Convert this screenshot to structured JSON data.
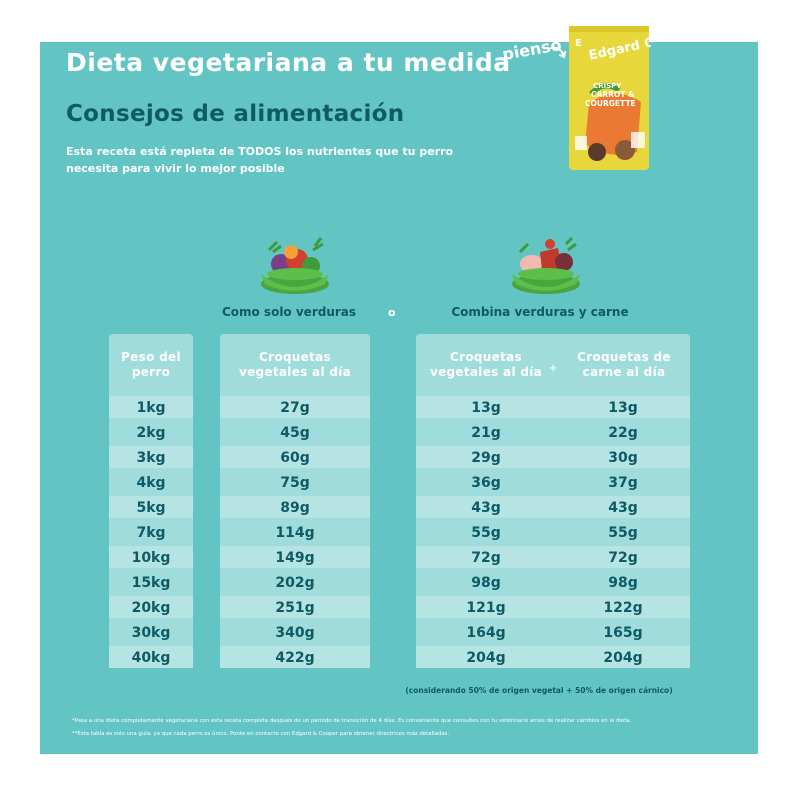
{
  "header": {
    "title": "Dieta vegetariana a tu medida",
    "subtitle": "Consejos de alimentación",
    "intro": "Esta receta está repleta de TODOS los nutrientes que tu perro necesita para vivir lo mejor posible"
  },
  "product": {
    "label": "pienso",
    "brand": "Edgard Cooper",
    "line1": "CRISPY",
    "line2": "CARROT &",
    "line3": "COURGETTE",
    "bag_color": "#e8d73a",
    "accent_color": "#ea7a33"
  },
  "columns": {
    "veg_only_label": "Como solo verduras",
    "conjunction": "o",
    "mixed_label": "Combina verduras y carne",
    "weight_header": "Peso del perro",
    "veg_header": "Croquetas vegetales al día",
    "mixed_veg_header": "Croquetas vegetales al día",
    "plus": "+",
    "mixed_meat_header": "Croquetas de carne al día"
  },
  "rows": [
    {
      "weight": "1kg",
      "veg_only": "27g",
      "mixed_veg": "13g",
      "mixed_meat": "13g"
    },
    {
      "weight": "2kg",
      "veg_only": "45g",
      "mixed_veg": "21g",
      "mixed_meat": "22g"
    },
    {
      "weight": "3kg",
      "veg_only": "60g",
      "mixed_veg": "29g",
      "mixed_meat": "30g"
    },
    {
      "weight": "4kg",
      "veg_only": "75g",
      "mixed_veg": "36g",
      "mixed_meat": "37g"
    },
    {
      "weight": "5kg",
      "veg_only": "89g",
      "mixed_veg": "43g",
      "mixed_meat": "43g"
    },
    {
      "weight": "7kg",
      "veg_only": "114g",
      "mixed_veg": "55g",
      "mixed_meat": "55g"
    },
    {
      "weight": "10kg",
      "veg_only": "149g",
      "mixed_veg": "72g",
      "mixed_meat": "72g"
    },
    {
      "weight": "15kg",
      "veg_only": "202g",
      "mixed_veg": "98g",
      "mixed_meat": "98g"
    },
    {
      "weight": "20kg",
      "veg_only": "251g",
      "mixed_veg": "121g",
      "mixed_meat": "122g"
    },
    {
      "weight": "30kg",
      "veg_only": "340g",
      "mixed_veg": "164g",
      "mixed_meat": "165g"
    },
    {
      "weight": "40kg",
      "veg_only": "422g",
      "mixed_veg": "204g",
      "mixed_meat": "204g"
    }
  ],
  "note": "(considerando 50% de origen vegetal + 50% de origen cárnico)",
  "footnotes": [
    "*Pasa a una dieta completamente vegetariana con esta receta completa después de un periodo de transición de 4 días. Es conveniente que consultes con tu veterinario antes de realizar cambios en la dieta.",
    "**Esta tabla es solo una guía, ya que cada perro es único. Ponte en contacto con Edgard & Cooper para obtener directrices más detalladas."
  ],
  "colors": {
    "panel": "#62c5c4",
    "dark_text": "#0e5a66",
    "column_bg": "#a0dcdb",
    "row_alt": "#b5e4e3",
    "bowl": "#5bbf4a"
  },
  "icons": [
    "veg-bowl-icon",
    "veg-meat-bowl-icon",
    "arrow-icon"
  ]
}
